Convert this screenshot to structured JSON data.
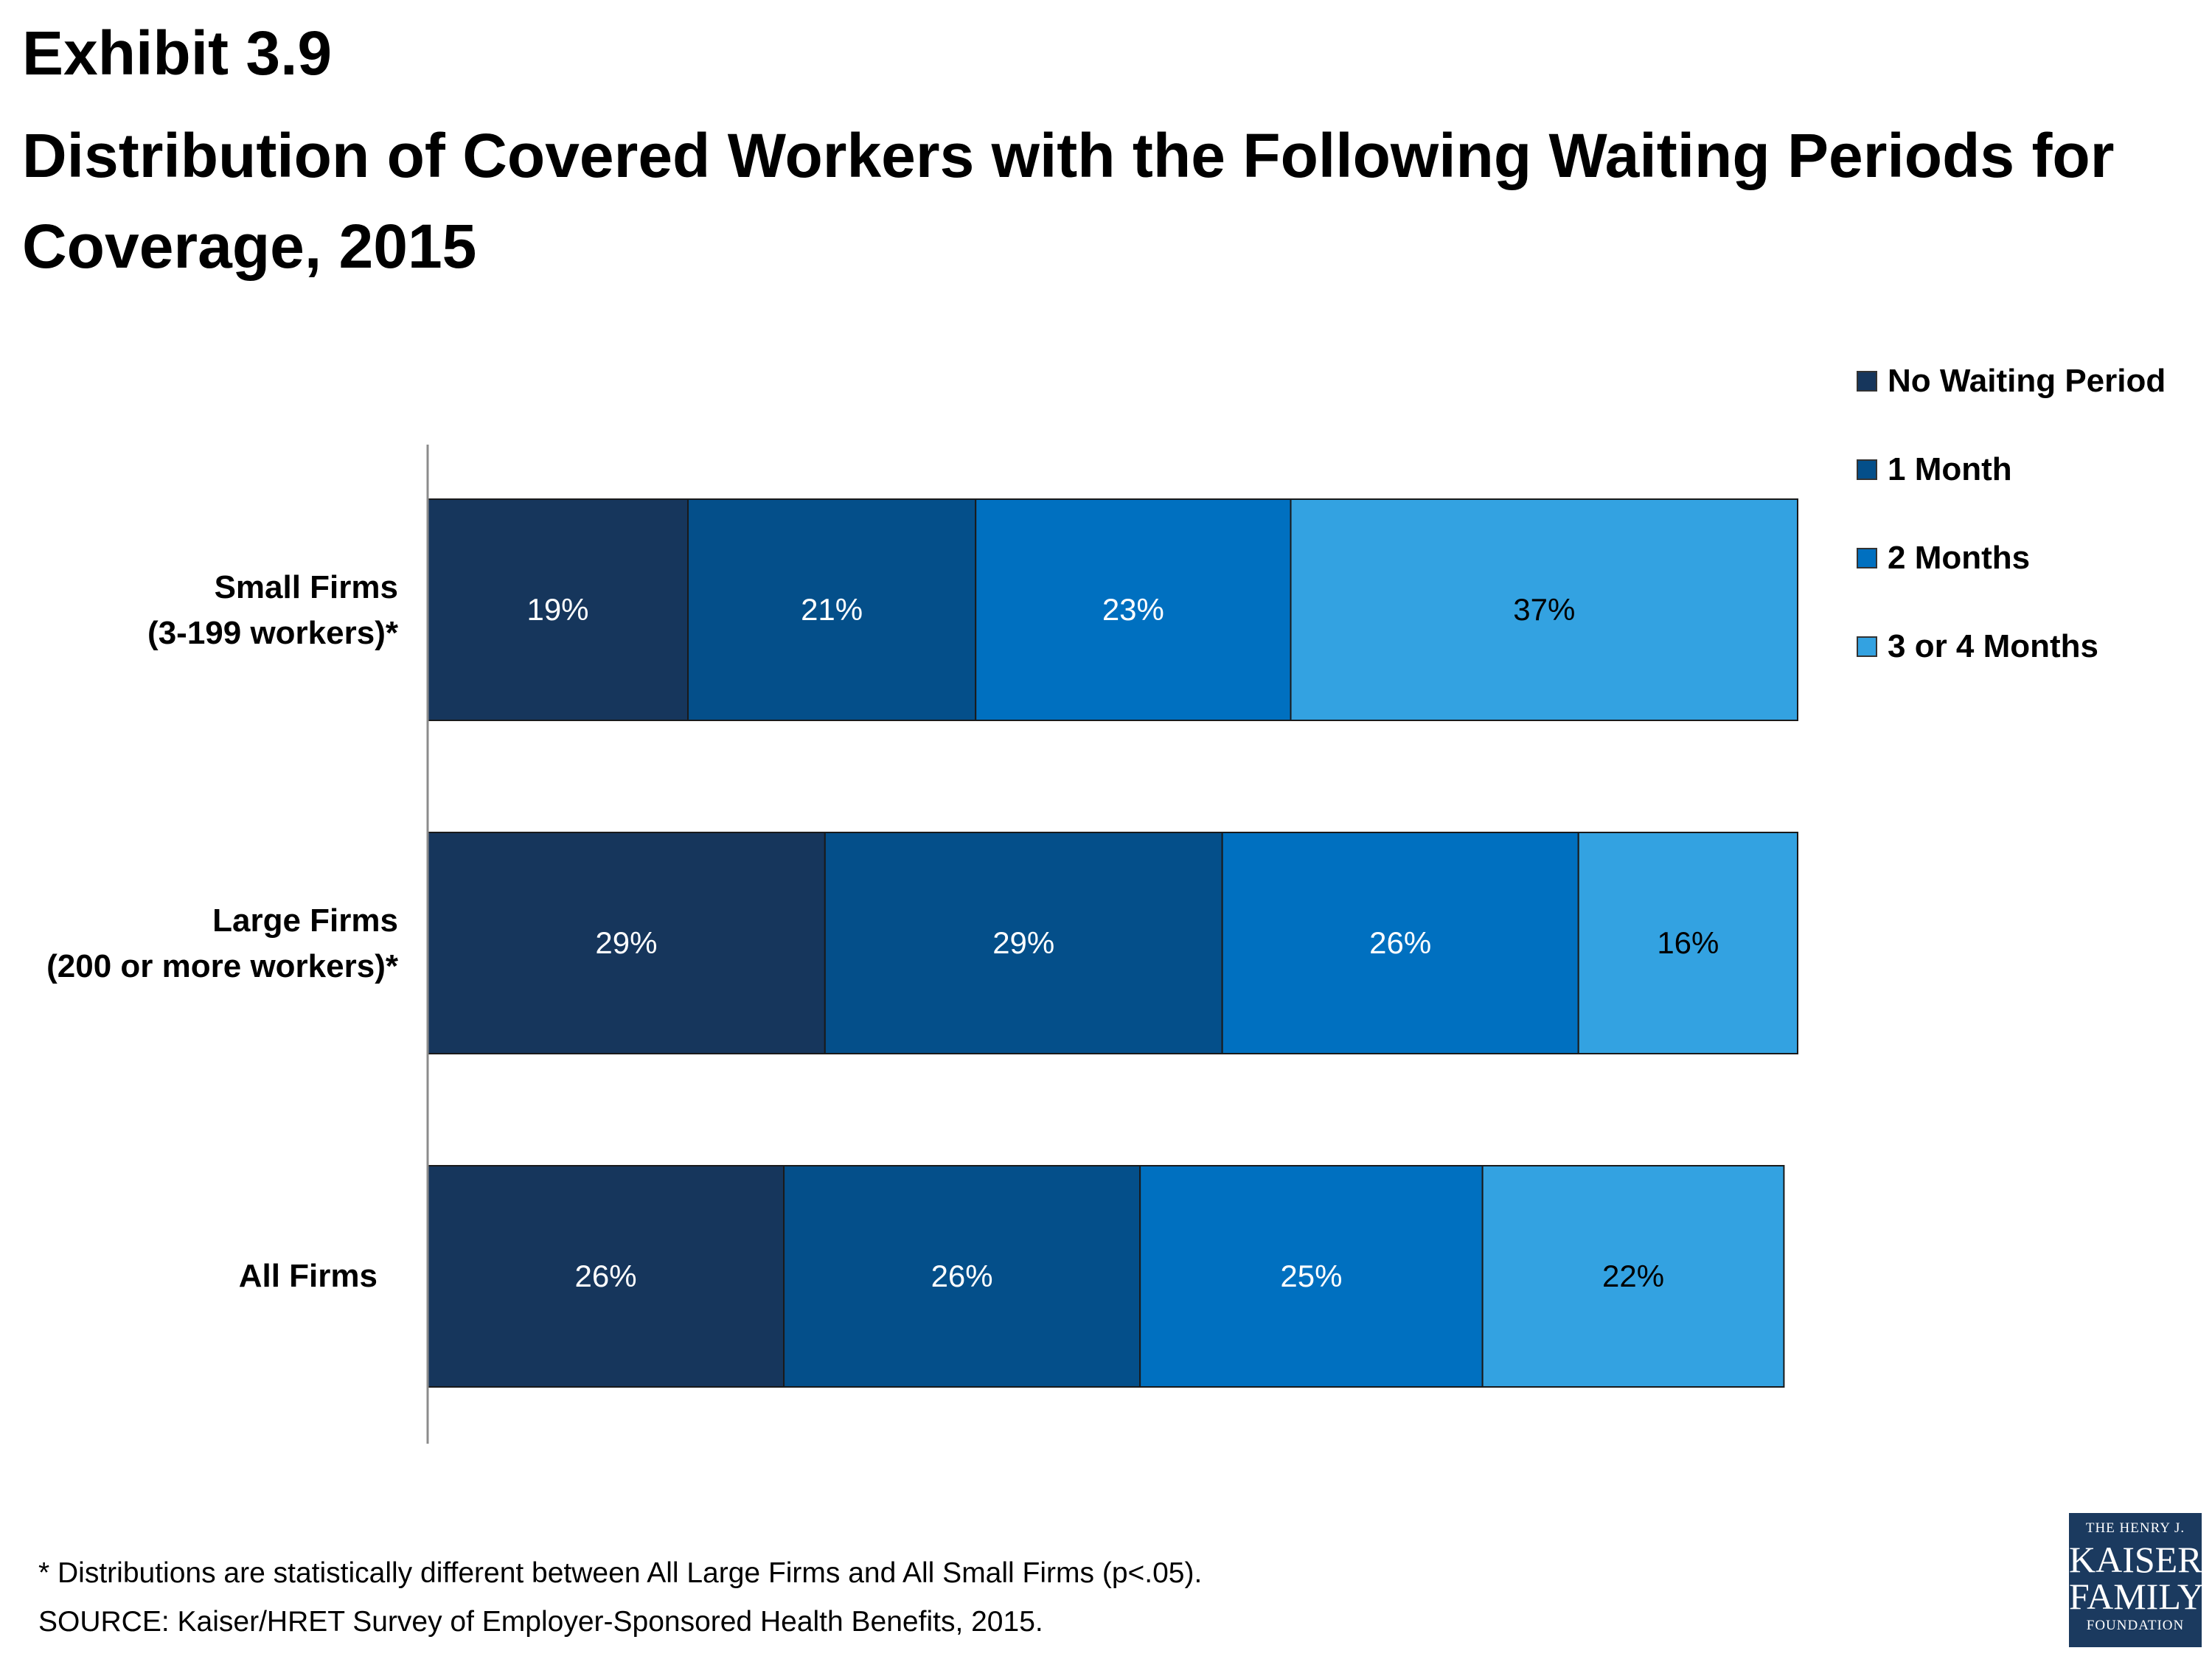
{
  "header": {
    "exhibit": "Exhibit 3.9",
    "title": "Distribution of Covered Workers with the Following Waiting Periods for Coverage, 2015"
  },
  "chart_data": {
    "type": "bar",
    "orientation": "horizontal",
    "stacked": true,
    "xlim": [
      0,
      100
    ],
    "grid": false,
    "legend_position": "top-right",
    "categories": [
      {
        "line1": "Small Firms",
        "line2": "(3-199 workers)*"
      },
      {
        "line1": "Large Firms",
        "line2": "(200 or more workers)*"
      },
      {
        "line1": "All Firms",
        "line2": ""
      }
    ],
    "series": [
      {
        "name": "No Waiting Period",
        "color": "#16365c",
        "values": [
          19,
          29,
          26
        ],
        "labels": [
          "19%",
          "29%",
          "26%"
        ]
      },
      {
        "name": "1 Month",
        "color": "#044f8a",
        "values": [
          21,
          29,
          26
        ],
        "labels": [
          "21%",
          "29%",
          "26%"
        ]
      },
      {
        "name": "2 Months",
        "color": "#0070c0",
        "values": [
          23,
          26,
          25
        ],
        "labels": [
          "23%",
          "26%",
          "25%"
        ]
      },
      {
        "name": "3 or 4 Months",
        "color": "#33a2e1",
        "values": [
          37,
          16,
          22
        ],
        "labels": [
          "37%",
          "16%",
          "22%"
        ]
      }
    ]
  },
  "footnotes": {
    "note": "* Distributions are statistically different between All Large Firms and All Small Firms (p<.05).",
    "source": "SOURCE: Kaiser/HRET Survey of Employer-Sponsored Health Benefits, 2015."
  },
  "logo": {
    "line1": "THE HENRY J.",
    "line2": "KAISER",
    "line3": "FAMILY",
    "line4": "FOUNDATION"
  }
}
